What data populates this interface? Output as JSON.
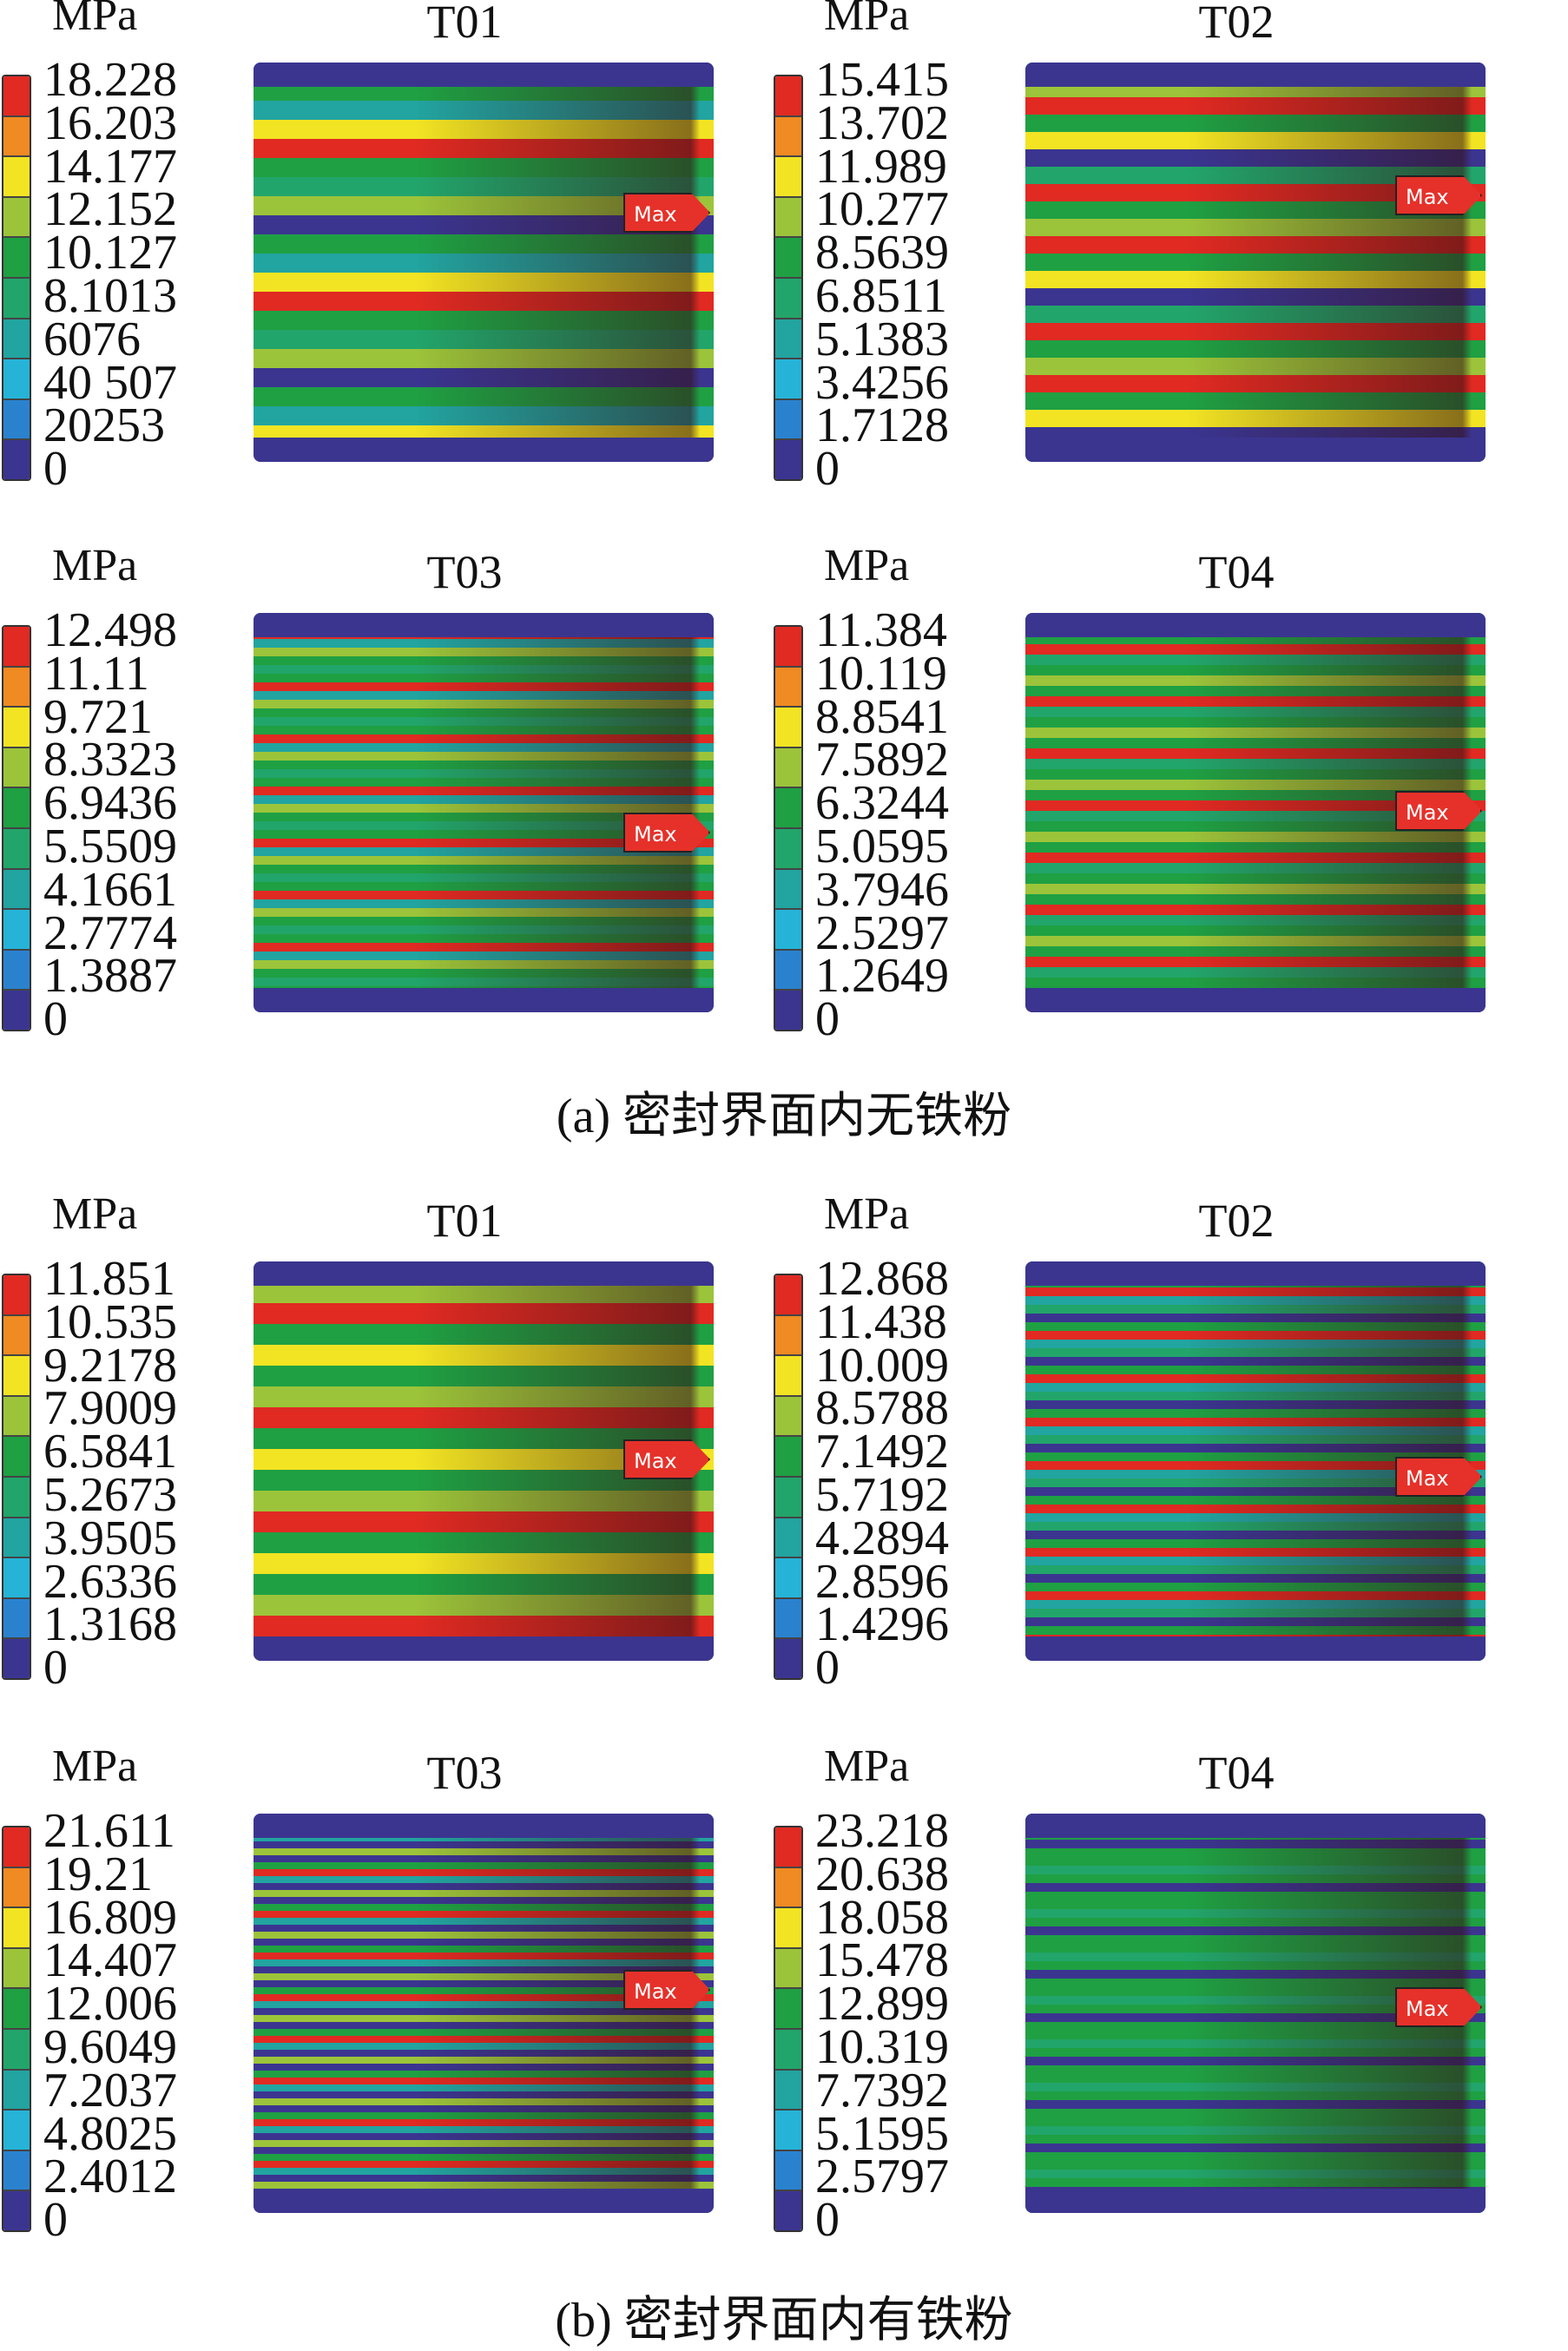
{
  "unit_label": "MPa",
  "max_label": "Max",
  "colors": {
    "legend": [
      "#e02a22",
      "#f08a22",
      "#f2e423",
      "#9cc43a",
      "#1fa043",
      "#22a56a",
      "#22a4a0",
      "#25b4d8",
      "#2a82cf",
      "#3b3590"
    ],
    "min": "#3b3590"
  },
  "captions": {
    "a": "(a) 密封界面内无铁粉",
    "b": "(b) 密封界面内有铁粉"
  },
  "panels": [
    {
      "group": "a",
      "title": "T01",
      "legend": [
        "18.228",
        "16.203",
        "14.177",
        "12.152",
        "10.127",
        "8.1013",
        "6076",
        "40 507",
        "20253",
        "0"
      ]
    },
    {
      "group": "a",
      "title": "T02",
      "legend": [
        "15.415",
        "13.702",
        "11.989",
        "10.277",
        "8.5639",
        "6.8511",
        "5.1383",
        "3.4256",
        "1.7128",
        "0"
      ]
    },
    {
      "group": "a",
      "title": "T03",
      "legend": [
        "12.498",
        "11.11",
        "9.721",
        "8.3323",
        "6.9436",
        "5.5509",
        "4.1661",
        "2.7774",
        "1.3887",
        "0"
      ]
    },
    {
      "group": "a",
      "title": "T04",
      "legend": [
        "11.384",
        "10.119",
        "8.8541",
        "7.5892",
        "6.3244",
        "5.0595",
        "3.7946",
        "2.5297",
        "1.2649",
        "0"
      ]
    },
    {
      "group": "b",
      "title": "T01",
      "legend": [
        "11.851",
        "10.535",
        "9.2178",
        "7.9009",
        "6.5841",
        "5.2673",
        "3.9505",
        "2.6336",
        "1.3168",
        "0"
      ]
    },
    {
      "group": "b",
      "title": "T02",
      "legend": [
        "12.868",
        "11.438",
        "10.009",
        "8.5788",
        "7.1492",
        "5.7192",
        "4.2894",
        "2.8596",
        "1.4296",
        "0"
      ]
    },
    {
      "group": "b",
      "title": "T03",
      "legend": [
        "21.611",
        "19.21",
        "16.809",
        "14.407",
        "12.006",
        "9.6049",
        "7.2037",
        "4.8025",
        "2.4012",
        "0"
      ]
    },
    {
      "group": "b",
      "title": "T04",
      "legend": [
        "23.218",
        "20.638",
        "18.058",
        "15.478",
        "12.899",
        "10.319",
        "7.7392",
        "5.1595",
        "2.5797",
        "0"
      ]
    }
  ]
}
